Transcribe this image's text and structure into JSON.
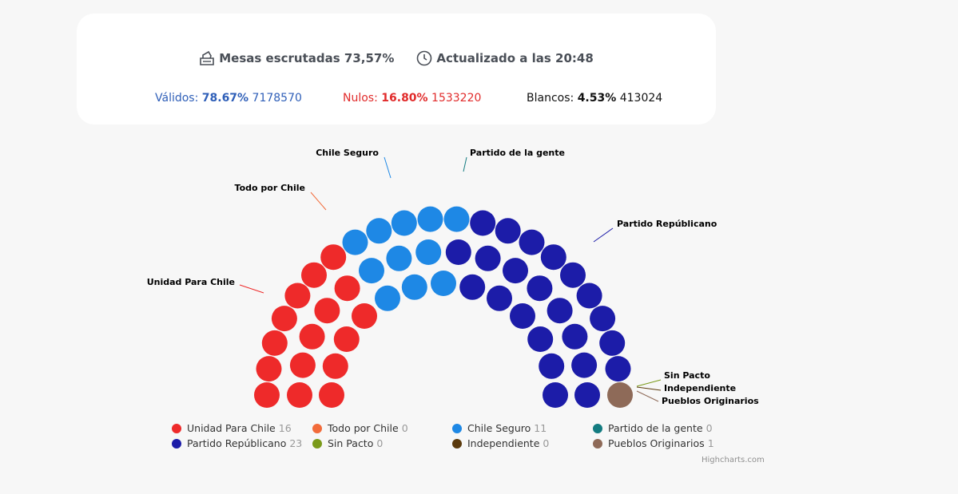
{
  "header": {
    "mesas_label": "Mesas escrutadas 73,57%",
    "updated_label": "Actualizado a las 20:48"
  },
  "stats": {
    "validos": {
      "label": "Válidos:",
      "pct": "78.67%",
      "count": "7178570",
      "color": "#2f5fb8"
    },
    "nulos": {
      "label": "Nulos:",
      "pct": "16.80%",
      "count": "1533220",
      "color": "#e12b2b"
    },
    "blancos": {
      "label": "Blancos:",
      "pct": "4.53%",
      "count": "413024",
      "color": "#111111"
    }
  },
  "chart_data": {
    "type": "parliament",
    "series": [
      {
        "name": "Unidad Para Chile",
        "seats": 16,
        "color": "#ee2a2a"
      },
      {
        "name": "Todo por Chile",
        "seats": 0,
        "color": "#f26b3a"
      },
      {
        "name": "Chile Seguro",
        "seats": 11,
        "color": "#1e88e5"
      },
      {
        "name": "Partido de la gente",
        "seats": 0,
        "color": "#137b80"
      },
      {
        "name": "Partido Republicano",
        "seats": 23,
        "color": "#1c1ca8"
      },
      {
        "name": "Sin Pacto",
        "seats": 0,
        "color": "#7a9a1a"
      },
      {
        "name": "Independiente",
        "seats": 0,
        "color": "#5b3a0d"
      },
      {
        "name": "Pueblos Originarios",
        "seats": 1,
        "color": "#8e6a58"
      }
    ],
    "data_labels": [
      "Unidad Para Chile",
      "Todo por Chile",
      "Chile Seguro",
      "Partido de la gente",
      "Partido Repúblicano",
      "Sin Pacto",
      "Independiente",
      "Pueblos Originarios"
    ]
  },
  "legend": [
    {
      "label": "Unidad Para Chile",
      "count": "16",
      "color": "#ee2a2a"
    },
    {
      "label": "Todo por Chile",
      "count": "0",
      "color": "#f26b3a"
    },
    {
      "label": "Chile Seguro",
      "count": "11",
      "color": "#1e88e5"
    },
    {
      "label": "Partido de la gente",
      "count": "0",
      "color": "#137b80"
    },
    {
      "label": "Partido Repúblicano",
      "count": "23",
      "color": "#1c1ca8"
    },
    {
      "label": "Sin Pacto",
      "count": "0",
      "color": "#7a9a1a"
    },
    {
      "label": "Independiente",
      "count": "0",
      "color": "#5b3a0d"
    },
    {
      "label": "Pueblos Originarios",
      "count": "1",
      "color": "#8e6a58"
    }
  ],
  "credits": "Highcharts.com"
}
